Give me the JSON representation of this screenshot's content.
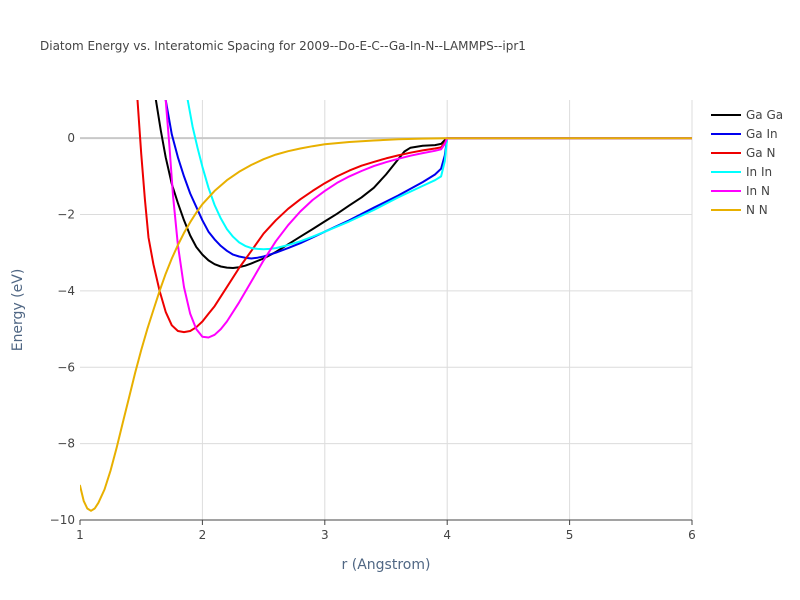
{
  "chart_data": {
    "type": "line",
    "title": "Diatom Energy vs. Interatomic Spacing for 2009--Do-E-C--Ga-In-N--LAMMPS--ipr1",
    "xlabel": "r (Angstrom)",
    "ylabel": "Energy (eV)",
    "xlim": [
      1,
      6
    ],
    "ylim": [
      -10,
      1
    ],
    "x_ticks": [
      1,
      2,
      3,
      4,
      5,
      6
    ],
    "y_ticks": [
      -10,
      -8,
      -6,
      -4,
      -2,
      0
    ],
    "x_tick_labels": [
      "1",
      "2",
      "3",
      "4",
      "5",
      "6"
    ],
    "y_tick_labels": [
      "−10",
      "−8",
      "−6",
      "−4",
      "−2",
      "0"
    ],
    "grid": true,
    "legend_position": "top-right",
    "series": [
      {
        "name": "Ga Ga",
        "color": "#000000",
        "x": [
          1.62,
          1.66,
          1.7,
          1.75,
          1.8,
          1.85,
          1.9,
          1.95,
          2.0,
          2.05,
          2.1,
          2.15,
          2.2,
          2.25,
          2.3,
          2.35,
          2.4,
          2.5,
          2.6,
          2.7,
          2.8,
          2.9,
          3.0,
          3.1,
          3.2,
          3.3,
          3.4,
          3.5,
          3.6,
          3.65,
          3.7,
          3.8,
          3.9,
          3.95,
          3.98,
          4.0,
          4.5,
          5.0,
          5.5,
          6.0
        ],
        "y": [
          1.0,
          0.2,
          -0.5,
          -1.2,
          -1.7,
          -2.15,
          -2.55,
          -2.85,
          -3.05,
          -3.2,
          -3.3,
          -3.36,
          -3.39,
          -3.4,
          -3.38,
          -3.34,
          -3.28,
          -3.15,
          -2.98,
          -2.78,
          -2.58,
          -2.38,
          -2.18,
          -1.98,
          -1.76,
          -1.55,
          -1.3,
          -0.95,
          -0.55,
          -0.35,
          -0.25,
          -0.2,
          -0.18,
          -0.15,
          -0.05,
          0.0,
          0.0,
          0.0,
          0.0,
          0.0
        ]
      },
      {
        "name": "Ga In",
        "color": "#0000ee",
        "x": [
          1.7,
          1.75,
          1.8,
          1.85,
          1.9,
          1.95,
          2.0,
          2.05,
          2.1,
          2.15,
          2.2,
          2.25,
          2.3,
          2.35,
          2.4,
          2.45,
          2.5,
          2.6,
          2.7,
          2.8,
          2.9,
          3.0,
          3.2,
          3.4,
          3.6,
          3.8,
          3.9,
          3.95,
          3.98,
          4.0,
          4.5,
          5.0,
          5.5,
          6.0
        ],
        "y": [
          1.0,
          0.1,
          -0.5,
          -1.0,
          -1.45,
          -1.8,
          -2.15,
          -2.45,
          -2.65,
          -2.82,
          -2.95,
          -3.05,
          -3.1,
          -3.13,
          -3.15,
          -3.13,
          -3.1,
          -3.0,
          -2.88,
          -2.75,
          -2.6,
          -2.45,
          -2.15,
          -1.82,
          -1.5,
          -1.15,
          -0.95,
          -0.8,
          -0.45,
          0.0,
          0.0,
          0.0,
          0.0,
          0.0
        ]
      },
      {
        "name": "Ga N",
        "color": "#ee0000",
        "x": [
          1.47,
          1.5,
          1.53,
          1.56,
          1.6,
          1.65,
          1.7,
          1.75,
          1.8,
          1.85,
          1.9,
          1.95,
          2.0,
          2.05,
          2.1,
          2.2,
          2.3,
          2.4,
          2.5,
          2.6,
          2.7,
          2.8,
          2.9,
          3.0,
          3.1,
          3.2,
          3.3,
          3.4,
          3.5,
          3.6,
          3.7,
          3.8,
          3.9,
          3.95,
          3.98,
          4.0,
          4.5,
          5.0,
          5.5,
          6.0
        ],
        "y": [
          1.0,
          -0.4,
          -1.6,
          -2.6,
          -3.3,
          -4.0,
          -4.55,
          -4.9,
          -5.05,
          -5.08,
          -5.05,
          -4.95,
          -4.8,
          -4.6,
          -4.4,
          -3.9,
          -3.4,
          -2.95,
          -2.5,
          -2.15,
          -1.85,
          -1.6,
          -1.38,
          -1.18,
          -1.0,
          -0.85,
          -0.72,
          -0.62,
          -0.53,
          -0.45,
          -0.38,
          -0.32,
          -0.27,
          -0.24,
          -0.12,
          0.0,
          0.0,
          0.0,
          0.0,
          0.0
        ]
      },
      {
        "name": "In In",
        "color": "#00ffff",
        "x": [
          1.88,
          1.92,
          1.96,
          2.0,
          2.05,
          2.1,
          2.15,
          2.2,
          2.25,
          2.3,
          2.35,
          2.4,
          2.45,
          2.5,
          2.55,
          2.6,
          2.7,
          2.8,
          2.9,
          3.0,
          3.2,
          3.4,
          3.6,
          3.8,
          3.9,
          3.95,
          3.98,
          4.0,
          4.5,
          5.0,
          5.5,
          6.0
        ],
        "y": [
          1.0,
          0.3,
          -0.25,
          -0.75,
          -1.3,
          -1.75,
          -2.1,
          -2.38,
          -2.58,
          -2.73,
          -2.82,
          -2.88,
          -2.9,
          -2.91,
          -2.9,
          -2.88,
          -2.8,
          -2.7,
          -2.58,
          -2.45,
          -2.18,
          -1.88,
          -1.55,
          -1.25,
          -1.1,
          -1.0,
          -0.6,
          0.0,
          0.0,
          0.0,
          0.0,
          0.0
        ]
      },
      {
        "name": "In N",
        "color": "#ff00ff",
        "x": [
          1.7,
          1.73,
          1.76,
          1.8,
          1.85,
          1.9,
          1.95,
          2.0,
          2.05,
          2.1,
          2.15,
          2.2,
          2.3,
          2.4,
          2.5,
          2.6,
          2.7,
          2.8,
          2.9,
          3.0,
          3.1,
          3.2,
          3.3,
          3.4,
          3.5,
          3.6,
          3.7,
          3.8,
          3.9,
          3.95,
          3.98,
          4.0,
          4.5,
          5.0,
          5.5,
          6.0
        ],
        "y": [
          1.0,
          -0.2,
          -1.5,
          -2.8,
          -3.9,
          -4.6,
          -5.0,
          -5.2,
          -5.22,
          -5.15,
          -5.0,
          -4.8,
          -4.3,
          -3.75,
          -3.2,
          -2.7,
          -2.28,
          -1.92,
          -1.62,
          -1.38,
          -1.17,
          -1.0,
          -0.86,
          -0.73,
          -0.63,
          -0.54,
          -0.46,
          -0.39,
          -0.33,
          -0.29,
          -0.15,
          0.0,
          0.0,
          0.0,
          0.0,
          0.0
        ]
      },
      {
        "name": "N N",
        "color": "#e8b000",
        "x": [
          1.0,
          1.03,
          1.06,
          1.09,
          1.12,
          1.15,
          1.2,
          1.25,
          1.3,
          1.35,
          1.4,
          1.45,
          1.5,
          1.55,
          1.6,
          1.65,
          1.7,
          1.75,
          1.8,
          1.85,
          1.9,
          1.95,
          2.0,
          2.1,
          2.2,
          2.3,
          2.4,
          2.5,
          2.6,
          2.7,
          2.8,
          2.9,
          3.0,
          3.2,
          3.4,
          3.6,
          3.8,
          4.0,
          4.5,
          5.0,
          5.5,
          6.0
        ],
        "y": [
          -9.1,
          -9.5,
          -9.7,
          -9.76,
          -9.7,
          -9.55,
          -9.2,
          -8.7,
          -8.1,
          -7.45,
          -6.8,
          -6.15,
          -5.55,
          -5.0,
          -4.5,
          -4.0,
          -3.55,
          -3.15,
          -2.8,
          -2.48,
          -2.2,
          -1.95,
          -1.73,
          -1.38,
          -1.1,
          -0.88,
          -0.7,
          -0.55,
          -0.43,
          -0.34,
          -0.27,
          -0.21,
          -0.16,
          -0.1,
          -0.06,
          -0.03,
          -0.01,
          0.0,
          0.0,
          0.0,
          0.0,
          0.0
        ]
      }
    ]
  }
}
